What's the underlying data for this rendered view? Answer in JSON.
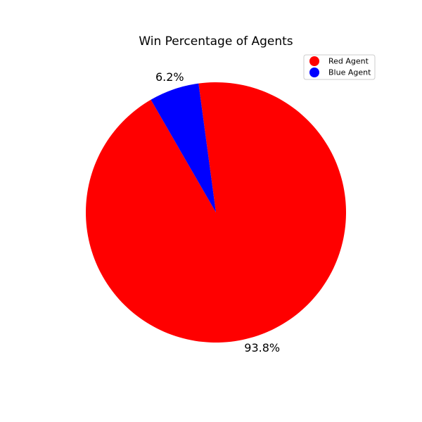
{
  "chart_data": {
    "type": "pie",
    "title": "Win Percentage of Agents",
    "slices": [
      {
        "label": "Red Agent",
        "value": 93.8,
        "pct_label": "93.8%",
        "color": "#ff0000"
      },
      {
        "label": "Blue Agent",
        "value": 6.2,
        "pct_label": "6.2%",
        "color": "#0000ff"
      }
    ],
    "start_angle_deg": 120,
    "direction": "counterclockwise",
    "legend": {
      "position": "top-right",
      "entries": [
        "Red Agent",
        "Blue Agent"
      ]
    }
  }
}
